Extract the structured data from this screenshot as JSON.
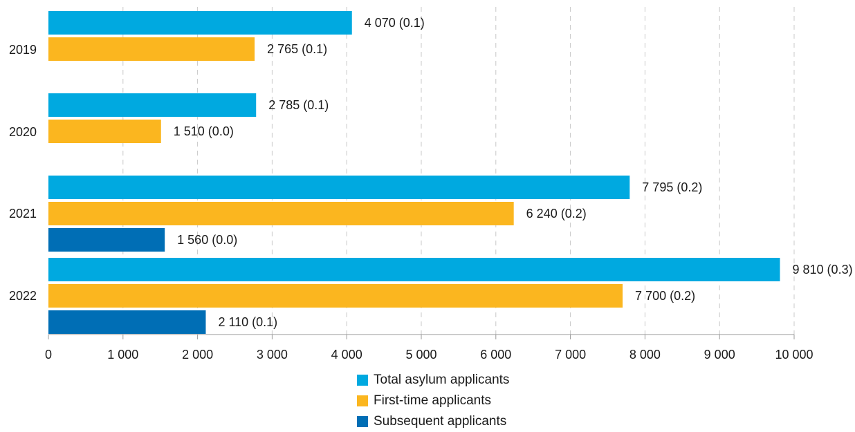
{
  "chart_data": {
    "type": "bar",
    "orientation": "horizontal",
    "categories": [
      "2019",
      "2020",
      "2021",
      "2022"
    ],
    "series": [
      {
        "name": "Total asylum applicants",
        "color": "#00a9e0",
        "values": [
          4070,
          2785,
          7795,
          9810
        ],
        "labels": [
          "4 070 (0.1)",
          "2 785 (0.1)",
          "7 795 (0.2)",
          "9 810 (0.3)"
        ]
      },
      {
        "name": "First-time applicants",
        "color": "#fbb61f",
        "values": [
          2765,
          1510,
          6240,
          7700
        ],
        "labels": [
          "2 765 (0.1)",
          "1 510 (0.0)",
          "6 240 (0.2)",
          "7 700 (0.2)"
        ]
      },
      {
        "name": "Subsequent applicants",
        "color": "#006eb5",
        "values": [
          null,
          null,
          1560,
          2110
        ],
        "labels": [
          null,
          null,
          "1 560 (0.0)",
          "2 110 (0.1)"
        ]
      }
    ],
    "xlim": [
      0,
      10000
    ],
    "xticks": [
      0,
      1000,
      2000,
      3000,
      4000,
      5000,
      6000,
      7000,
      8000,
      9000,
      10000
    ],
    "xtick_labels": [
      "0",
      "1 000",
      "2 000",
      "3 000",
      "4 000",
      "5 000",
      "6 000",
      "7 000",
      "8 000",
      "9 000",
      "10 000"
    ],
    "grid": "vertical dashed",
    "legend_position": "bottom"
  }
}
